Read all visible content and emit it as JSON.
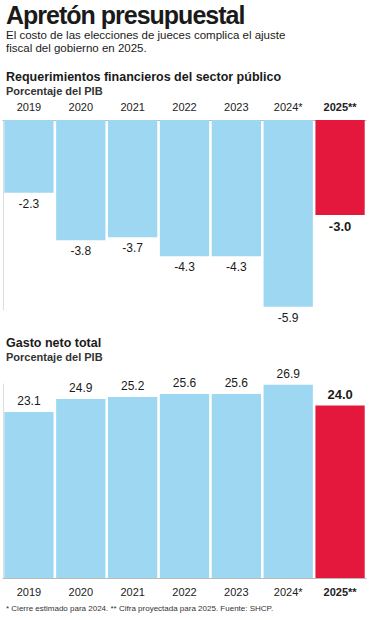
{
  "title": "Apretón presupuestal",
  "subtitle": "El costo de las elecciones de jueces complica el ajuste fiscal del gobierno en 2025.",
  "chart_data": [
    {
      "type": "bar",
      "title": "Requerimientos financieros del sector público",
      "subtitle": "Porcentaje del PIB",
      "categories": [
        "2019",
        "2020",
        "2021",
        "2022",
        "2023",
        "2024*",
        "2025**"
      ],
      "values": [
        -2.3,
        -3.8,
        -3.7,
        -4.3,
        -4.3,
        -5.9,
        -3.0
      ],
      "value_labels": [
        "-2.3",
        "-3.8",
        "-3.7",
        "-4.3",
        "-4.3",
        "-5.9",
        "-3.0"
      ],
      "colors": [
        "#9ed7f1",
        "#9ed7f1",
        "#9ed7f1",
        "#9ed7f1",
        "#9ed7f1",
        "#9ed7f1",
        "#e3183c"
      ],
      "ylim": [
        -6,
        0
      ],
      "grid": false,
      "data_labels": true,
      "tick_labels": "x"
    },
    {
      "type": "bar",
      "title": "Gasto neto total",
      "subtitle": "Porcentaje del PIB",
      "categories": [
        "2019",
        "2020",
        "2021",
        "2022",
        "2023",
        "2024*",
        "2025**"
      ],
      "values": [
        23.1,
        24.9,
        25.2,
        25.6,
        25.6,
        26.9,
        24.0
      ],
      "value_labels": [
        "23.1",
        "24.9",
        "25.2",
        "25.6",
        "25.6",
        "26.9",
        "24.0"
      ],
      "colors": [
        "#9ed7f1",
        "#9ed7f1",
        "#9ed7f1",
        "#9ed7f1",
        "#9ed7f1",
        "#9ed7f1",
        "#e3183c"
      ],
      "ylim": [
        0,
        27
      ],
      "grid": false,
      "data_labels": true,
      "tick_labels": "x"
    }
  ],
  "footnote": "* Cierre estimado para 2024. ** Cifra proyectada para 2025. Fuente: SHCP."
}
